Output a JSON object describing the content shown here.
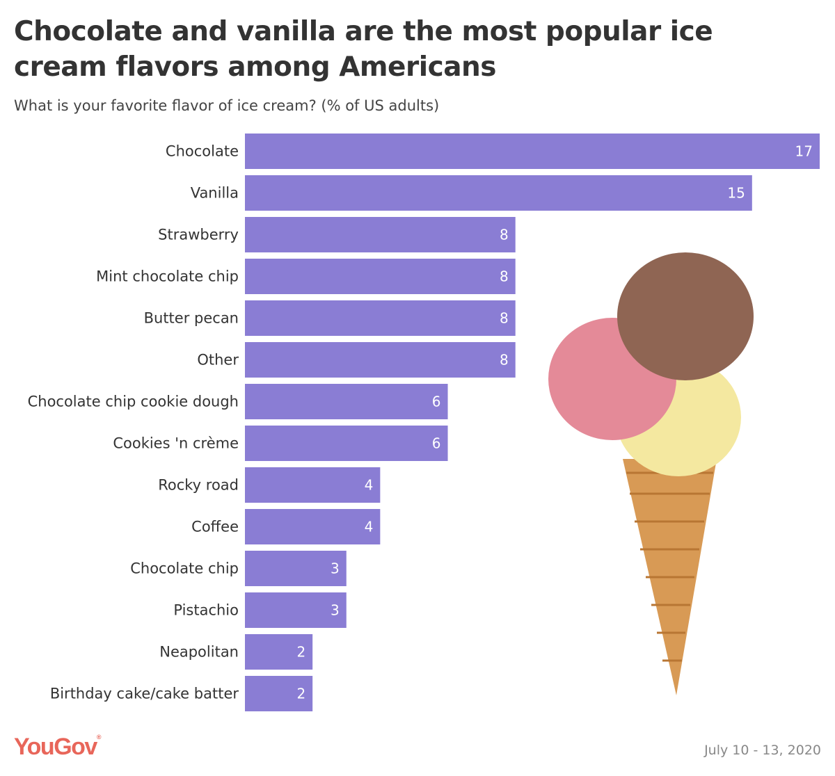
{
  "chart_data": {
    "type": "bar",
    "orientation": "horizontal",
    "title": "Chocolate and vanilla are the most popular ice cream flavors among Americans",
    "subtitle": "What is your favorite flavor of ice cream? (% of US adults)",
    "categories": [
      "Chocolate",
      "Vanilla",
      "Strawberry",
      "Mint chocolate chip",
      "Butter pecan",
      "Other",
      "Chocolate chip cookie dough",
      "Cookies 'n crème",
      "Rocky road",
      "Coffee",
      "Chocolate chip",
      "Pistachio",
      "Neapolitan",
      "Birthday cake/cake batter"
    ],
    "values": [
      17,
      15,
      8,
      8,
      8,
      8,
      6,
      6,
      4,
      4,
      3,
      3,
      2,
      2
    ],
    "xlim": [
      0,
      17
    ],
    "grid": false,
    "bar_color": "#8a7dd4",
    "data_labels": true
  },
  "footer": {
    "logo": "YouGov",
    "date": "July 10 - 13, 2020"
  },
  "colors": {
    "logo": "#e8665a"
  },
  "image": "ice-cream-cone"
}
